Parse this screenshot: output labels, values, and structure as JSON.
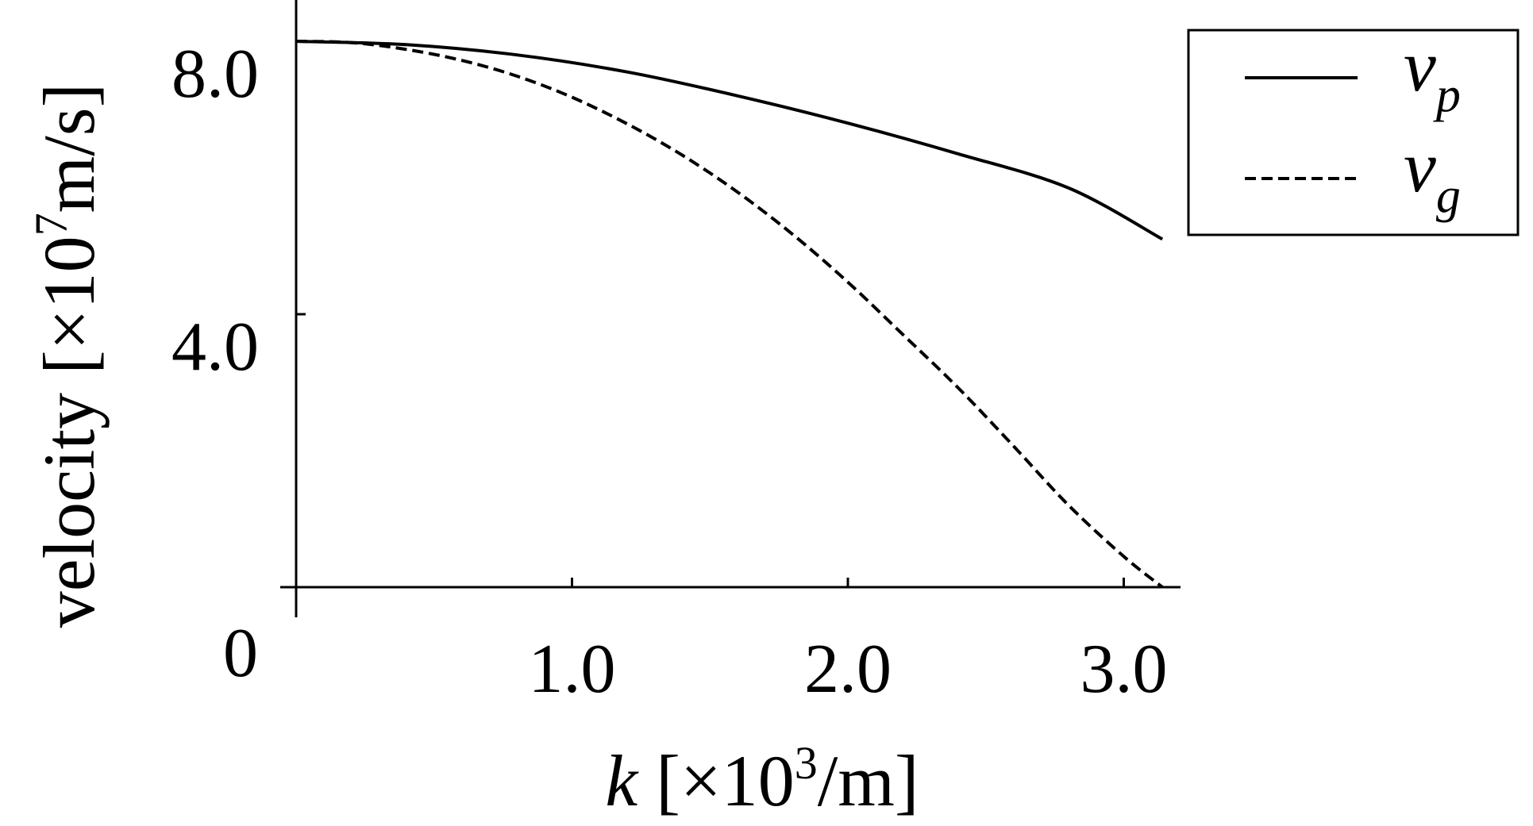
{
  "chart_data": {
    "type": "line",
    "xlabel": {
      "var": "k",
      "pre": " [×10",
      "exp": "3",
      "post": "/m]"
    },
    "ylabel": {
      "pre": "velocity [×10",
      "exp": "7",
      "post": "m/s]"
    },
    "xlim": [
      0,
      3.2
    ],
    "ylim": [
      0,
      9.0
    ],
    "x_ticks": [
      {
        "value": 1.0,
        "label": "1.0"
      },
      {
        "value": 2.0,
        "label": "2.0"
      },
      {
        "value": 3.0,
        "label": "3.0"
      }
    ],
    "y_ticks": [
      {
        "value": 4.0,
        "label": "4.0"
      },
      {
        "value": 8.0,
        "label": "8.0"
      }
    ],
    "origin_label": "0",
    "grid": false,
    "legend_position": "top-right",
    "series": [
      {
        "name": "v",
        "name_sub": "p",
        "line_style": "solid",
        "color": "#000000",
        "x": [
          0.0,
          0.4,
          0.8,
          1.2,
          1.6,
          2.0,
          2.4,
          2.8,
          3.14
        ],
        "y": [
          8.0,
          7.95,
          7.8,
          7.55,
          7.2,
          6.8,
          6.35,
          5.85,
          5.1
        ]
      },
      {
        "name": "v",
        "name_sub": "g",
        "line_style": "dashed",
        "color": "#000000",
        "x": [
          0.0,
          0.2,
          0.4,
          0.6,
          0.8,
          1.0,
          1.2,
          1.4,
          1.6,
          1.8,
          2.0,
          2.2,
          2.4,
          2.6,
          2.8,
          3.0,
          3.14
        ],
        "y": [
          8.0,
          7.98,
          7.88,
          7.72,
          7.49,
          7.18,
          6.79,
          6.33,
          5.79,
          5.17,
          4.47,
          3.7,
          2.92,
          2.07,
          1.2,
          0.45,
          0.0
        ]
      }
    ]
  }
}
